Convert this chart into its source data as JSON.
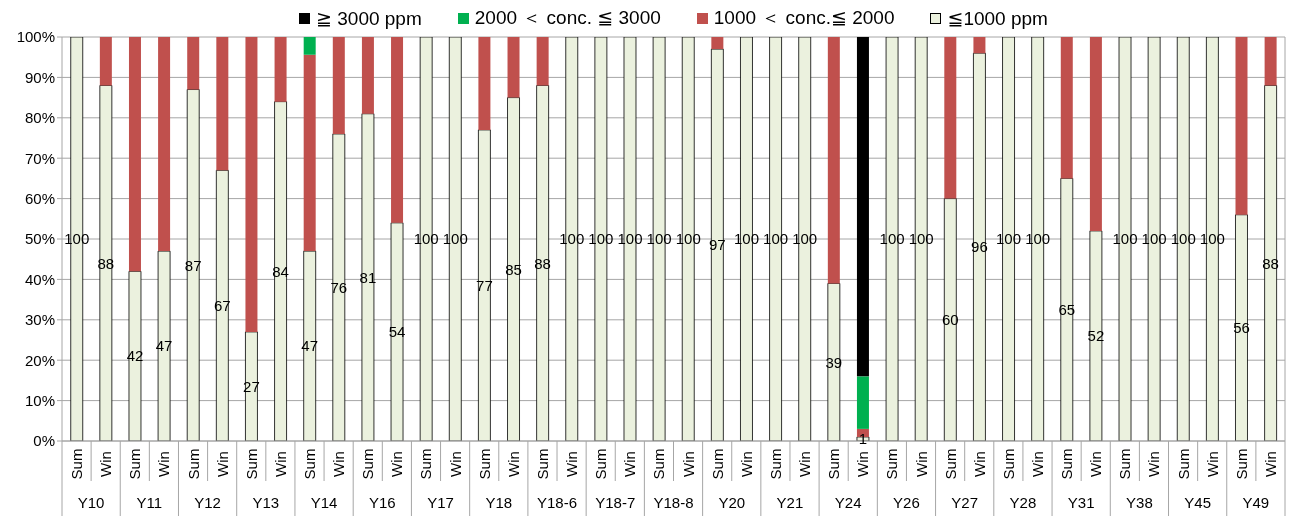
{
  "chart_data": {
    "type": "bar",
    "stacked": true,
    "categories": [
      "Sum",
      "Win",
      "Sum",
      "Win",
      "Sum",
      "Win",
      "Sum",
      "Win",
      "Sum",
      "Win",
      "Sum",
      "Win",
      "Sum",
      "Win",
      "Sum",
      "Win",
      "Sum",
      "Win",
      "Sum",
      "Win",
      "Sum",
      "Win",
      "Sum",
      "Win",
      "Sum",
      "Win",
      "Sum",
      "Win",
      "Sum",
      "Win",
      "Sum",
      "Win",
      "Sum",
      "Win",
      "Sum",
      "Win",
      "Sum",
      "Win",
      "Sum",
      "Win",
      "Sum",
      "Win"
    ],
    "annotations": [
      "Y10",
      "Y11",
      "Y12",
      "Y13",
      "Y14",
      "Y16",
      "Y17",
      "Y18",
      "Y18-6",
      "Y18-7",
      "Y18-8",
      "Y20",
      "Y21",
      "Y24",
      "Y26",
      "Y27",
      "Y28",
      "Y31",
      "Y38",
      "Y45",
      "Y49"
    ],
    "series": [
      {
        "name": "≦1000 ppm",
        "color": "#ebf1de",
        "values": [
          100,
          88,
          42,
          47,
          87,
          67,
          27,
          84,
          47,
          76,
          81,
          54,
          100,
          100,
          77,
          85,
          88,
          100,
          100,
          100,
          100,
          100,
          97,
          100,
          100,
          100,
          39,
          1,
          100,
          100,
          60,
          96,
          100,
          100,
          65,
          52,
          100,
          100,
          100,
          100,
          56,
          88
        ],
        "value_labels": [
          "100",
          "88",
          "42",
          "47",
          "87",
          "67",
          "27",
          "84",
          "47",
          "76",
          "81",
          "54",
          "100",
          "100",
          "77",
          "85",
          "88",
          "100",
          "100",
          "100",
          "100",
          "100",
          "97",
          "100",
          "100",
          "100",
          "39",
          "1",
          "100",
          "100",
          "60",
          "96",
          "100",
          "100",
          "65",
          "52",
          "100",
          "100",
          "100",
          "100",
          "56",
          "88"
        ]
      },
      {
        "name": "1000 ＜ conc.≦ 2000",
        "color": "#c0504d",
        "values": [
          null,
          12,
          58,
          53,
          13,
          33,
          73,
          16,
          48.6,
          24,
          19,
          46,
          null,
          null,
          23,
          15,
          12,
          null,
          null,
          null,
          null,
          null,
          3,
          null,
          null,
          null,
          61,
          2,
          null,
          null,
          40,
          4,
          null,
          null,
          35,
          48,
          null,
          null,
          null,
          null,
          44,
          12
        ]
      },
      {
        "name": "2000 ＜ conc. ≦ 3000",
        "color": "#00b050",
        "values": [
          null,
          null,
          null,
          null,
          null,
          null,
          null,
          null,
          4.4,
          null,
          null,
          null,
          null,
          null,
          null,
          null,
          null,
          null,
          null,
          null,
          null,
          null,
          null,
          null,
          null,
          null,
          null,
          13,
          null,
          null,
          null,
          null,
          null,
          null,
          null,
          null,
          null,
          null,
          null,
          null,
          null,
          null
        ]
      },
      {
        "name": "≧ 3000 ppm",
        "color": "#000000",
        "values": [
          null,
          null,
          null,
          null,
          null,
          null,
          null,
          null,
          null,
          null,
          null,
          null,
          null,
          null,
          null,
          null,
          null,
          null,
          null,
          null,
          null,
          null,
          null,
          null,
          null,
          null,
          null,
          84,
          null,
          null,
          null,
          null,
          null,
          null,
          null,
          null,
          null,
          null,
          null,
          null,
          null,
          null
        ]
      }
    ],
    "ylim": [
      0,
      100
    ],
    "yticks": [
      {
        "value": 0,
        "label": "0%"
      },
      {
        "value": 10,
        "label": "10%"
      },
      {
        "value": 20,
        "label": "20%"
      },
      {
        "value": 30,
        "label": "30%"
      },
      {
        "value": 40,
        "label": "40%"
      },
      {
        "value": 50,
        "label": "50%"
      },
      {
        "value": 60,
        "label": "60%"
      },
      {
        "value": 70,
        "label": "70%"
      },
      {
        "value": 80,
        "label": "80%"
      },
      {
        "value": 90,
        "label": "90%"
      },
      {
        "value": 100,
        "label": "100%"
      }
    ],
    "grid": "y",
    "legend": "top"
  }
}
